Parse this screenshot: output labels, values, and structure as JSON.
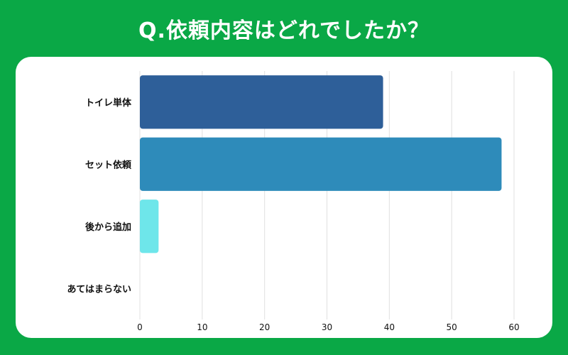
{
  "title": "Q.依頼内容はどれでしたか？",
  "colors": {
    "background": "#0aa846",
    "card": "#ffffff",
    "grid": "#e0e0e0",
    "bars": [
      "#2e5f99",
      "#2e8bba",
      "#6ee6ea",
      "#9fe9ef"
    ]
  },
  "chart_data": {
    "type": "bar",
    "orientation": "horizontal",
    "categories": [
      "トイレ単体",
      "セット依頼",
      "後から追加",
      "あてはまらない"
    ],
    "values": [
      39,
      58,
      3,
      0
    ],
    "xlim": [
      0,
      60
    ],
    "xticks": [
      0,
      10,
      20,
      30,
      40,
      50,
      60
    ],
    "grid": true,
    "title": "",
    "xlabel": "",
    "ylabel": ""
  }
}
